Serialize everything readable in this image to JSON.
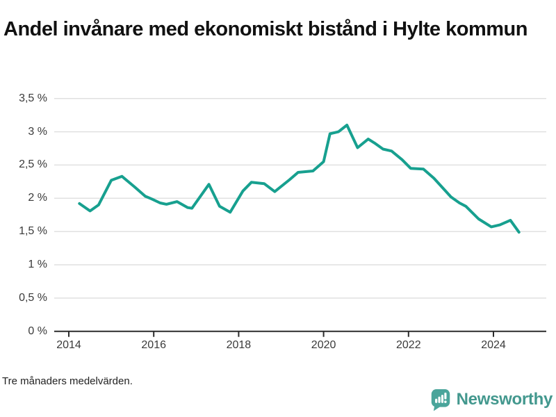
{
  "title": "Andel invånare med ekonomiskt bistånd i Hylte kommun",
  "footnote": "Tre månaders medelvärden.",
  "branding": {
    "name": "Newsworthy",
    "icon": "bar-chart-speech-bubble-icon"
  },
  "colors": {
    "line": "#17a08f",
    "brand_text": "#43988e",
    "brand_icon": "#4aa59b",
    "grid": "#e0e0e0",
    "axis": "#2b2b2b",
    "tick_text": "#3a3a3a",
    "title_text": "#111111"
  },
  "chart_data": {
    "type": "line",
    "title": "Andel invånare med ekonomiskt bistånd i Hylte kommun",
    "note": "Tre månaders medelvärden.",
    "xlabel": "",
    "ylabel": "",
    "x_unit": "year",
    "y_unit": "%",
    "xlim": [
      2013.66,
      2025.25
    ],
    "ylim": [
      0,
      3.5
    ],
    "grid": "horizontal-only",
    "legend": "none",
    "y_ticks": [
      {
        "label": "3,5 %",
        "value": 3.5
      },
      {
        "label": "3 %",
        "value": 3.0
      },
      {
        "label": "2,5 %",
        "value": 2.5
      },
      {
        "label": "2 %",
        "value": 2.0
      },
      {
        "label": "1,5 %",
        "value": 1.5
      },
      {
        "label": "1 %",
        "value": 1.0
      },
      {
        "label": "0,5 %",
        "value": 0.5
      },
      {
        "label": "0 %",
        "value": 0.0
      }
    ],
    "x_ticks": [
      {
        "label": "2014",
        "value": 2014
      },
      {
        "label": "2016",
        "value": 2016
      },
      {
        "label": "2018",
        "value": 2018
      },
      {
        "label": "2020",
        "value": 2020
      },
      {
        "label": "2022",
        "value": 2022
      },
      {
        "label": "2024",
        "value": 2024
      }
    ],
    "series": [
      {
        "name": "Hylte kommun",
        "points": [
          [
            2014.25,
            1.92
          ],
          [
            2014.5,
            1.81
          ],
          [
            2014.7,
            1.9
          ],
          [
            2015.0,
            2.27
          ],
          [
            2015.25,
            2.33
          ],
          [
            2015.55,
            2.17
          ],
          [
            2015.8,
            2.03
          ],
          [
            2015.95,
            1.99
          ],
          [
            2016.15,
            1.93
          ],
          [
            2016.3,
            1.91
          ],
          [
            2016.55,
            1.95
          ],
          [
            2016.8,
            1.86
          ],
          [
            2016.9,
            1.85
          ],
          [
            2017.3,
            2.21
          ],
          [
            2017.55,
            1.88
          ],
          [
            2017.8,
            1.79
          ],
          [
            2018.1,
            2.11
          ],
          [
            2018.3,
            2.24
          ],
          [
            2018.6,
            2.22
          ],
          [
            2018.85,
            2.1
          ],
          [
            2019.2,
            2.28
          ],
          [
            2019.4,
            2.39
          ],
          [
            2019.75,
            2.41
          ],
          [
            2020.0,
            2.55
          ],
          [
            2020.15,
            2.97
          ],
          [
            2020.35,
            3.0
          ],
          [
            2020.55,
            3.1
          ],
          [
            2020.8,
            2.76
          ],
          [
            2021.05,
            2.89
          ],
          [
            2021.2,
            2.83
          ],
          [
            2021.4,
            2.74
          ],
          [
            2021.6,
            2.71
          ],
          [
            2021.85,
            2.58
          ],
          [
            2022.05,
            2.45
          ],
          [
            2022.35,
            2.44
          ],
          [
            2022.6,
            2.3
          ],
          [
            2022.8,
            2.16
          ],
          [
            2023.0,
            2.02
          ],
          [
            2023.2,
            1.93
          ],
          [
            2023.35,
            1.88
          ],
          [
            2023.65,
            1.69
          ],
          [
            2023.95,
            1.57
          ],
          [
            2024.15,
            1.6
          ],
          [
            2024.4,
            1.67
          ],
          [
            2024.6,
            1.49
          ]
        ]
      }
    ]
  }
}
